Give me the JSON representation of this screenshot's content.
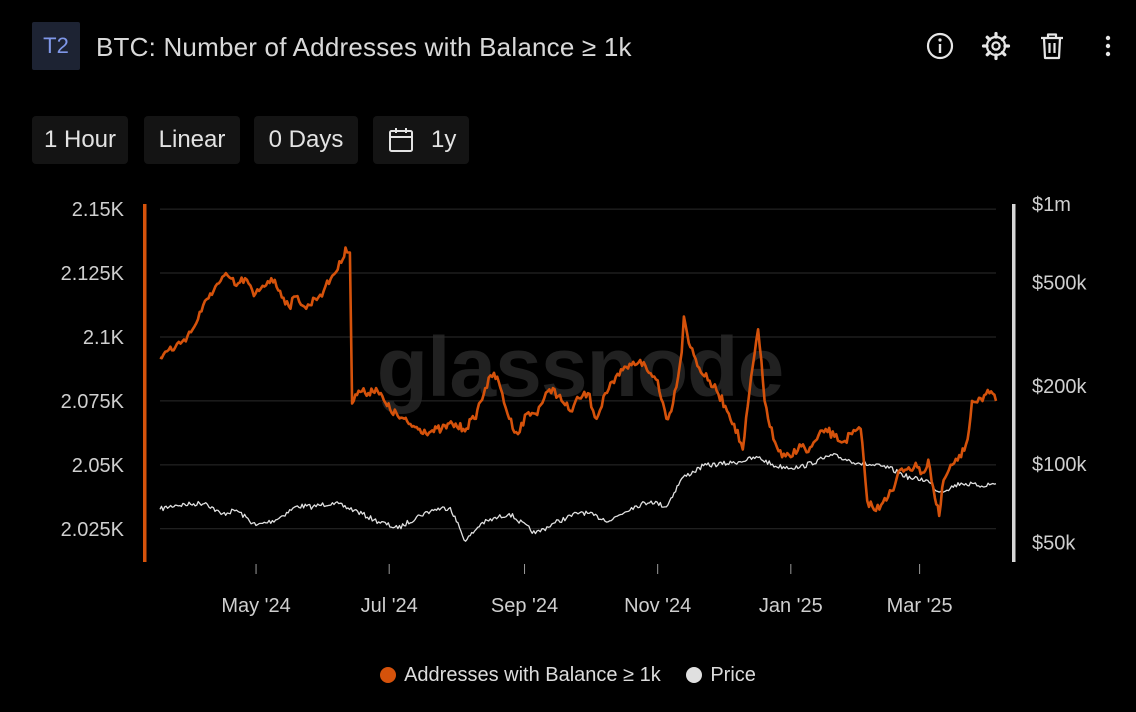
{
  "header": {
    "badge": "T2",
    "title": "BTC: Number of Addresses with Balance ≥ 1k",
    "icons": [
      "info-icon",
      "gear-icon",
      "trash-icon",
      "more-vertical-icon"
    ]
  },
  "toolbar": {
    "resolution": "1 Hour",
    "scale": "Linear",
    "moving_average": "0 Days",
    "range": "1y"
  },
  "watermark": "glassnode",
  "colors": {
    "addresses": "#d5520b",
    "price": "#e0e0e0",
    "grid": "#2b2b2b",
    "background": "#000000"
  },
  "chart_data": {
    "type": "line",
    "title": "BTC: Number of Addresses with Balance ≥ 1k",
    "x_ticks": [
      "May '24",
      "Jul '24",
      "Sep '24",
      "Nov '24",
      "Jan '25",
      "Mar '25"
    ],
    "y_left": {
      "ticks": [
        "2.15K",
        "2.125K",
        "2.1K",
        "2.075K",
        "2.05K",
        "2.025K"
      ],
      "range": [
        2012,
        2152
      ]
    },
    "y_right": {
      "scale": "log",
      "ticks": [
        "$1m",
        "$500k",
        "$200k",
        "$100k",
        "$50k"
      ],
      "range": [
        42000,
        1000000
      ]
    },
    "grid": true,
    "legend_position": "bottom-center",
    "series": [
      {
        "name": "Addresses with Balance ≥ 1k",
        "axis": "left",
        "color": "#d5520b",
        "points": [
          [
            "2024-03-18",
            2092
          ],
          [
            "2024-03-22",
            2095
          ],
          [
            "2024-03-25",
            2096
          ],
          [
            "2024-03-29",
            2099
          ],
          [
            "2024-04-02",
            2103
          ],
          [
            "2024-04-06",
            2110
          ],
          [
            "2024-04-10",
            2117
          ],
          [
            "2024-04-14",
            2121
          ],
          [
            "2024-04-18",
            2124
          ],
          [
            "2024-04-22",
            2120
          ],
          [
            "2024-04-26",
            2123
          ],
          [
            "2024-04-30",
            2116
          ],
          [
            "2024-05-04",
            2120
          ],
          [
            "2024-05-08",
            2123
          ],
          [
            "2024-05-12",
            2118
          ],
          [
            "2024-05-16",
            2112
          ],
          [
            "2024-05-20",
            2116
          ],
          [
            "2024-05-24",
            2111
          ],
          [
            "2024-05-28",
            2115
          ],
          [
            "2024-06-01",
            2118
          ],
          [
            "2024-06-05",
            2124
          ],
          [
            "2024-06-09",
            2129
          ],
          [
            "2024-06-11",
            2135
          ],
          [
            "2024-06-13",
            2133
          ],
          [
            "2024-06-14",
            2074
          ],
          [
            "2024-06-17",
            2079
          ],
          [
            "2024-06-20",
            2078
          ],
          [
            "2024-06-25",
            2080
          ],
          [
            "2024-06-30",
            2073
          ],
          [
            "2024-07-05",
            2069
          ],
          [
            "2024-07-10",
            2066
          ],
          [
            "2024-07-15",
            2064
          ],
          [
            "2024-07-20",
            2063
          ],
          [
            "2024-07-25",
            2064
          ],
          [
            "2024-07-30",
            2066
          ],
          [
            "2024-08-04",
            2064
          ],
          [
            "2024-08-09",
            2068
          ],
          [
            "2024-08-14",
            2080
          ],
          [
            "2024-08-18",
            2086
          ],
          [
            "2024-08-21",
            2080
          ],
          [
            "2024-08-25",
            2068
          ],
          [
            "2024-08-29",
            2062
          ],
          [
            "2024-09-02",
            2070
          ],
          [
            "2024-09-06",
            2070
          ],
          [
            "2024-09-10",
            2076
          ],
          [
            "2024-09-14",
            2080
          ],
          [
            "2024-09-18",
            2075
          ],
          [
            "2024-09-22",
            2071
          ],
          [
            "2024-09-26",
            2076
          ],
          [
            "2024-09-30",
            2078
          ],
          [
            "2024-10-04",
            2068
          ],
          [
            "2024-10-08",
            2078
          ],
          [
            "2024-10-12",
            2082
          ],
          [
            "2024-10-16",
            2087
          ],
          [
            "2024-10-20",
            2089
          ],
          [
            "2024-10-24",
            2091
          ],
          [
            "2024-10-28",
            2086
          ],
          [
            "2024-11-01",
            2083
          ],
          [
            "2024-11-05",
            2068
          ],
          [
            "2024-11-08",
            2074
          ],
          [
            "2024-11-12",
            2094
          ],
          [
            "2024-11-13",
            2108
          ],
          [
            "2024-11-16",
            2096
          ],
          [
            "2024-11-20",
            2088
          ],
          [
            "2024-11-24",
            2083
          ],
          [
            "2024-11-28",
            2079
          ],
          [
            "2024-12-02",
            2073
          ],
          [
            "2024-12-06",
            2066
          ],
          [
            "2024-12-10",
            2056
          ],
          [
            "2024-12-13",
            2078
          ],
          [
            "2024-12-17",
            2103
          ],
          [
            "2024-12-20",
            2075
          ],
          [
            "2024-12-24",
            2060
          ],
          [
            "2024-12-28",
            2053
          ],
          [
            "2025-01-01",
            2053
          ],
          [
            "2025-01-05",
            2058
          ],
          [
            "2025-01-09",
            2055
          ],
          [
            "2025-01-13",
            2060
          ],
          [
            "2025-01-17",
            2064
          ],
          [
            "2025-01-21",
            2061
          ],
          [
            "2025-01-25",
            2059
          ],
          [
            "2025-01-29",
            2062
          ],
          [
            "2025-02-02",
            2064
          ],
          [
            "2025-02-05",
            2036
          ],
          [
            "2025-02-09",
            2032
          ],
          [
            "2025-02-13",
            2037
          ],
          [
            "2025-02-17",
            2040
          ],
          [
            "2025-02-20",
            2048
          ],
          [
            "2025-02-24",
            2049
          ],
          [
            "2025-02-28",
            2049
          ],
          [
            "2025-03-03",
            2047
          ],
          [
            "2025-03-05",
            2052
          ],
          [
            "2025-03-08",
            2037
          ],
          [
            "2025-03-10",
            2030
          ],
          [
            "2025-03-12",
            2044
          ],
          [
            "2025-03-16",
            2050
          ],
          [
            "2025-03-20",
            2053
          ],
          [
            "2025-03-23",
            2060
          ],
          [
            "2025-03-25",
            2075
          ],
          [
            "2025-03-29",
            2076
          ],
          [
            "2025-04-02",
            2078
          ],
          [
            "2025-04-05",
            2075
          ]
        ]
      },
      {
        "name": "Price",
        "axis": "right",
        "color": "#e0e0e0",
        "points": [
          [
            "2024-03-18",
            67000
          ],
          [
            "2024-03-25",
            69500
          ],
          [
            "2024-04-01",
            70000
          ],
          [
            "2024-04-08",
            71000
          ],
          [
            "2024-04-15",
            64000
          ],
          [
            "2024-04-22",
            66500
          ],
          [
            "2024-05-01",
            58000
          ],
          [
            "2024-05-10",
            61000
          ],
          [
            "2024-05-20",
            69000
          ],
          [
            "2024-05-27",
            68500
          ],
          [
            "2024-06-05",
            71000
          ],
          [
            "2024-06-15",
            66500
          ],
          [
            "2024-06-24",
            61000
          ],
          [
            "2024-07-05",
            56500
          ],
          [
            "2024-07-15",
            63500
          ],
          [
            "2024-07-22",
            67000
          ],
          [
            "2024-07-29",
            68000
          ],
          [
            "2024-08-05",
            50500
          ],
          [
            "2024-08-12",
            59000
          ],
          [
            "2024-08-25",
            64500
          ],
          [
            "2024-09-06",
            54000
          ],
          [
            "2024-09-15",
            59500
          ],
          [
            "2024-09-27",
            65500
          ],
          [
            "2024-10-10",
            60500
          ],
          [
            "2024-10-20",
            68000
          ],
          [
            "2024-10-29",
            72000
          ],
          [
            "2024-11-05",
            68500
          ],
          [
            "2024-11-12",
            88000
          ],
          [
            "2024-11-22",
            98500
          ],
          [
            "2024-12-05",
            101000
          ],
          [
            "2024-12-17",
            106000
          ],
          [
            "2024-12-25",
            98000
          ],
          [
            "2025-01-05",
            97000
          ],
          [
            "2025-01-20",
            108000
          ],
          [
            "2025-02-01",
            101000
          ],
          [
            "2025-02-15",
            96500
          ],
          [
            "2025-02-25",
            88000
          ],
          [
            "2025-03-04",
            87000
          ],
          [
            "2025-03-10",
            78000
          ],
          [
            "2025-03-20",
            84500
          ],
          [
            "2025-03-28",
            82500
          ],
          [
            "2025-04-05",
            84000
          ]
        ]
      }
    ]
  },
  "legend": [
    {
      "label": "Addresses with Balance ≥ 1k",
      "color": "#d5520b"
    },
    {
      "label": "Price",
      "color": "#e0e0e0"
    }
  ]
}
